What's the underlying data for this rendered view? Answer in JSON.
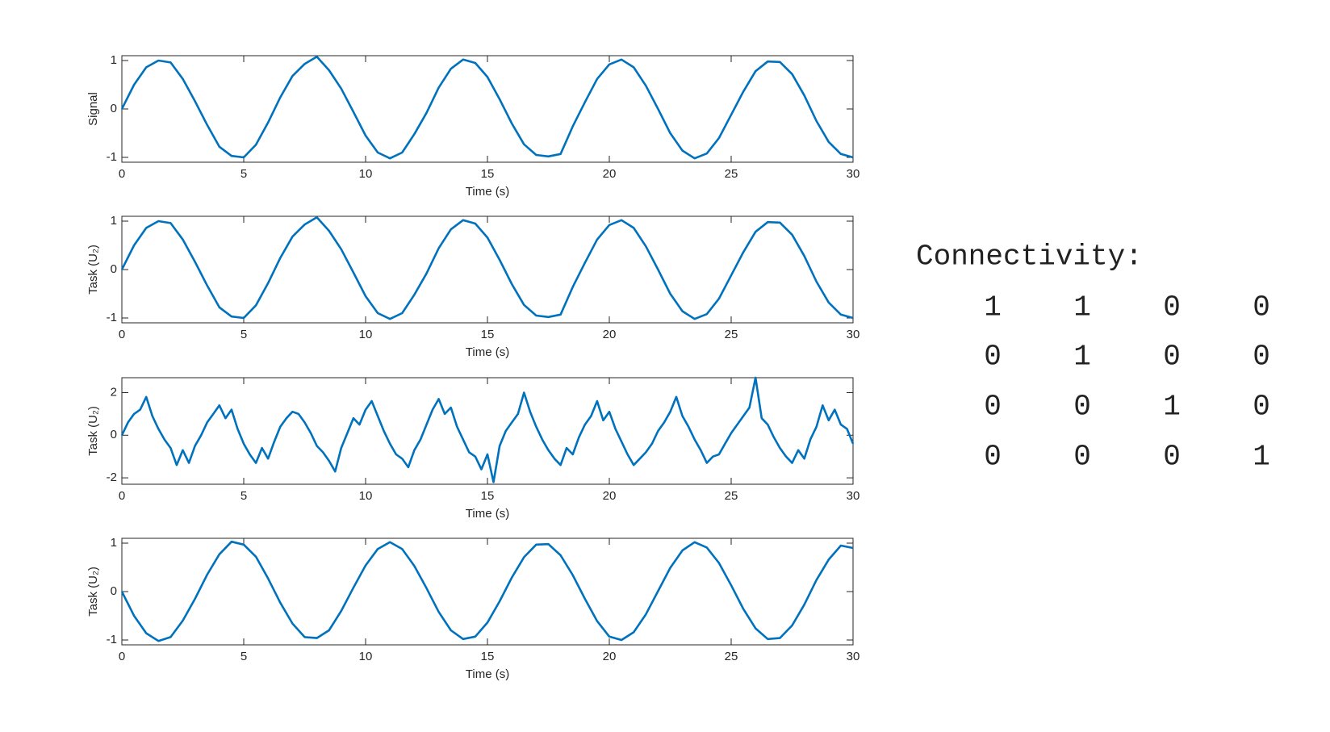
{
  "chart_data": [
    {
      "type": "line",
      "ylabel": "Signal",
      "xlabel": "Time (s)",
      "color": "#0072BD",
      "xlim": [
        0,
        30
      ],
      "xticks": [
        0,
        5,
        10,
        15,
        20,
        25,
        30
      ],
      "ylim": [
        -1.1,
        1.1
      ],
      "yticks": [
        -1,
        0,
        1
      ],
      "x": [
        0,
        0.5,
        1,
        1.5,
        2,
        2.5,
        3,
        3.5,
        4,
        4.5,
        5,
        5.5,
        6,
        6.5,
        7,
        7.5,
        8,
        8.5,
        9,
        9.5,
        10,
        10.5,
        11,
        11.5,
        12,
        12.5,
        13,
        13.5,
        14,
        14.5,
        15,
        15.5,
        16,
        16.5,
        17,
        17.5,
        18,
        18.5,
        19,
        19.5,
        20,
        20.5,
        21,
        21.5,
        22,
        22.5,
        23,
        23.5,
        24,
        24.5,
        25,
        25.5,
        26,
        26.5,
        27,
        27.5,
        28,
        28.5,
        29,
        29.5,
        30
      ],
      "values": [
        0,
        0.5,
        0.86,
        1.0,
        0.96,
        0.62,
        0.16,
        -0.33,
        -0.78,
        -0.97,
        -1.0,
        -0.74,
        -0.28,
        0.24,
        0.68,
        0.93,
        1.08,
        0.8,
        0.42,
        -0.06,
        -0.55,
        -0.9,
        -1.02,
        -0.9,
        -0.52,
        -0.08,
        0.44,
        0.83,
        1.02,
        0.95,
        0.66,
        0.2,
        -0.3,
        -0.73,
        -0.95,
        -0.98,
        -0.93,
        -0.36,
        0.14,
        0.62,
        0.92,
        1.02,
        0.86,
        0.48,
        0.0,
        -0.5,
        -0.86,
        -1.02,
        -0.92,
        -0.6,
        -0.12,
        0.36,
        0.78,
        0.98,
        0.97,
        0.72,
        0.28,
        -0.25,
        -0.68,
        -0.93,
        -1.0
      ]
    },
    {
      "type": "line",
      "ylabel": "Task (U₂)",
      "xlabel": "Time (s)",
      "color": "#0072BD",
      "xlim": [
        0,
        30
      ],
      "xticks": [
        0,
        5,
        10,
        15,
        20,
        25,
        30
      ],
      "ylim": [
        -1.1,
        1.1
      ],
      "yticks": [
        -1,
        0,
        1
      ],
      "x": [
        0,
        0.5,
        1,
        1.5,
        2,
        2.5,
        3,
        3.5,
        4,
        4.5,
        5,
        5.5,
        6,
        6.5,
        7,
        7.5,
        8,
        8.5,
        9,
        9.5,
        10,
        10.5,
        11,
        11.5,
        12,
        12.5,
        13,
        13.5,
        14,
        14.5,
        15,
        15.5,
        16,
        16.5,
        17,
        17.5,
        18,
        18.5,
        19,
        19.5,
        20,
        20.5,
        21,
        21.5,
        22,
        22.5,
        23,
        23.5,
        24,
        24.5,
        25,
        25.5,
        26,
        26.5,
        27,
        27.5,
        28,
        28.5,
        29,
        29.5,
        30
      ],
      "values": [
        0,
        0.5,
        0.86,
        1.0,
        0.96,
        0.62,
        0.16,
        -0.33,
        -0.78,
        -0.97,
        -1.0,
        -0.74,
        -0.28,
        0.24,
        0.68,
        0.93,
        1.08,
        0.8,
        0.42,
        -0.06,
        -0.55,
        -0.9,
        -1.02,
        -0.9,
        -0.52,
        -0.08,
        0.44,
        0.83,
        1.02,
        0.95,
        0.66,
        0.2,
        -0.3,
        -0.73,
        -0.95,
        -0.98,
        -0.93,
        -0.36,
        0.14,
        0.62,
        0.92,
        1.02,
        0.86,
        0.48,
        0.0,
        -0.5,
        -0.86,
        -1.02,
        -0.92,
        -0.6,
        -0.12,
        0.36,
        0.78,
        0.98,
        0.97,
        0.72,
        0.28,
        -0.25,
        -0.68,
        -0.93,
        -1.0
      ]
    },
    {
      "type": "line",
      "ylabel": "Task (U₂)",
      "xlabel": "Time (s)",
      "color": "#0072BD",
      "xlim": [
        0,
        30
      ],
      "xticks": [
        0,
        5,
        10,
        15,
        20,
        25,
        30
      ],
      "ylim": [
        -2.3,
        2.7
      ],
      "yticks": [
        -2,
        0,
        2
      ],
      "x": [
        0,
        0.25,
        0.5,
        0.75,
        1,
        1.25,
        1.5,
        1.75,
        2,
        2.25,
        2.5,
        2.75,
        3,
        3.25,
        3.5,
        3.75,
        4,
        4.25,
        4.5,
        4.75,
        5,
        5.25,
        5.5,
        5.75,
        6,
        6.25,
        6.5,
        6.75,
        7,
        7.25,
        7.5,
        7.75,
        8,
        8.25,
        8.5,
        8.75,
        9,
        9.25,
        9.5,
        9.75,
        10,
        10.25,
        10.5,
        10.75,
        11,
        11.25,
        11.5,
        11.75,
        12,
        12.25,
        12.5,
        12.75,
        13,
        13.25,
        13.5,
        13.75,
        14,
        14.25,
        14.5,
        14.75,
        15,
        15.25,
        15.5,
        15.75,
        16,
        16.25,
        16.5,
        16.75,
        17,
        17.25,
        17.5,
        17.75,
        18,
        18.25,
        18.5,
        18.75,
        19,
        19.25,
        19.5,
        19.75,
        20,
        20.25,
        20.5,
        20.75,
        21,
        21.25,
        21.5,
        21.75,
        22,
        22.25,
        22.5,
        22.75,
        23,
        23.25,
        23.5,
        23.75,
        24,
        24.25,
        24.5,
        24.75,
        25,
        25.25,
        25.5,
        25.75,
        26,
        26.25,
        26.5,
        26.75,
        27,
        27.25,
        27.5,
        27.75,
        28,
        28.25,
        28.5,
        28.75,
        29,
        29.25,
        29.5,
        29.75,
        30
      ],
      "values": [
        0,
        0.6,
        1.0,
        1.2,
        1.8,
        0.9,
        0.3,
        -0.2,
        -0.6,
        -1.4,
        -0.7,
        -1.3,
        -0.5,
        0.0,
        0.6,
        1.0,
        1.4,
        0.8,
        1.2,
        0.3,
        -0.4,
        -0.9,
        -1.3,
        -0.6,
        -1.1,
        -0.3,
        0.4,
        0.8,
        1.1,
        1.0,
        0.6,
        0.1,
        -0.5,
        -0.8,
        -1.2,
        -1.7,
        -0.6,
        0.1,
        0.8,
        0.5,
        1.2,
        1.6,
        0.9,
        0.2,
        -0.4,
        -0.9,
        -1.1,
        -1.5,
        -0.7,
        -0.2,
        0.5,
        1.2,
        1.7,
        1.0,
        1.3,
        0.4,
        -0.2,
        -0.8,
        -1.0,
        -1.6,
        -0.9,
        -2.2,
        -0.5,
        0.2,
        0.6,
        1.0,
        2.0,
        1.1,
        0.4,
        -0.2,
        -0.7,
        -1.1,
        -1.4,
        -0.6,
        -0.9,
        -0.1,
        0.5,
        0.9,
        1.6,
        0.7,
        1.1,
        0.3,
        -0.3,
        -0.9,
        -1.4,
        -1.1,
        -0.8,
        -0.4,
        0.2,
        0.6,
        1.1,
        1.8,
        0.9,
        0.4,
        -0.2,
        -0.7,
        -1.3,
        -1.0,
        -0.9,
        -0.4,
        0.1,
        0.5,
        0.9,
        1.3,
        2.7,
        0.8,
        0.5,
        -0.1,
        -0.6,
        -1.0,
        -1.3,
        -0.7,
        -1.1,
        -0.2,
        0.4,
        1.4,
        0.7,
        1.2,
        0.5,
        0.3,
        -0.4
      ]
    },
    {
      "type": "line",
      "ylabel": "Task (U₂)",
      "xlabel": "Time (s)",
      "color": "#0072BD",
      "xlim": [
        0,
        30
      ],
      "xticks": [
        0,
        5,
        10,
        15,
        20,
        25,
        30
      ],
      "ylim": [
        -1.1,
        1.1
      ],
      "yticks": [
        -1,
        0,
        1
      ],
      "x": [
        0,
        0.5,
        1,
        1.5,
        2,
        2.5,
        3,
        3.5,
        4,
        4.5,
        5,
        5.5,
        6,
        6.5,
        7,
        7.5,
        8,
        8.5,
        9,
        9.5,
        10,
        10.5,
        11,
        11.5,
        12,
        12.5,
        13,
        13.5,
        14,
        14.5,
        15,
        15.5,
        16,
        16.5,
        17,
        17.5,
        18,
        18.5,
        19,
        19.5,
        20,
        20.5,
        21,
        21.5,
        22,
        22.5,
        23,
        23.5,
        24,
        24.5,
        25,
        25.5,
        26,
        26.5,
        27,
        27.5,
        28,
        28.5,
        29,
        29.5,
        30
      ],
      "values": [
        0,
        -0.5,
        -0.86,
        -1.02,
        -0.94,
        -0.6,
        -0.15,
        0.35,
        0.77,
        1.03,
        0.97,
        0.72,
        0.27,
        -0.23,
        -0.66,
        -0.94,
        -0.96,
        -0.8,
        -0.4,
        0.08,
        0.54,
        0.88,
        1.02,
        0.88,
        0.53,
        0.07,
        -0.42,
        -0.8,
        -0.98,
        -0.93,
        -0.64,
        -0.2,
        0.29,
        0.71,
        0.97,
        0.98,
        0.75,
        0.34,
        -0.15,
        -0.61,
        -0.93,
        -1.0,
        -0.84,
        -0.47,
        0.01,
        0.49,
        0.85,
        1.02,
        0.91,
        0.59,
        0.13,
        -0.36,
        -0.76,
        -0.98,
        -0.96,
        -0.7,
        -0.27,
        0.24,
        0.66,
        0.95,
        0.9
      ]
    }
  ],
  "connectivity": {
    "title": "Connectivity:",
    "matrix": [
      [
        1,
        1,
        0,
        0
      ],
      [
        0,
        1,
        0,
        0
      ],
      [
        0,
        0,
        1,
        0
      ],
      [
        0,
        0,
        0,
        1
      ]
    ]
  }
}
